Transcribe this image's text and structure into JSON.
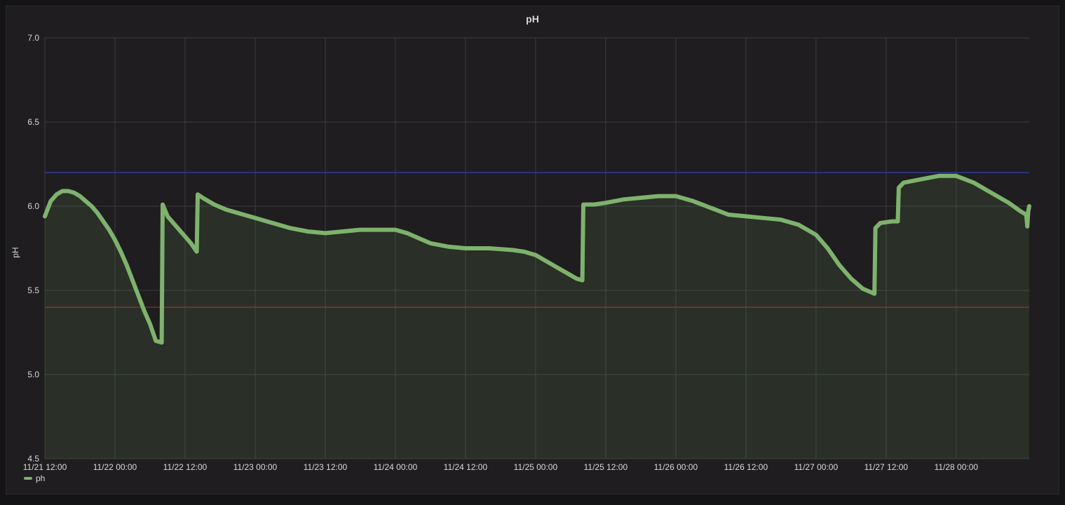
{
  "panel": {
    "title": "pH"
  },
  "chart_data": {
    "type": "line",
    "title": "pH",
    "ylabel": "pH",
    "xlabel": "",
    "ylim": [
      4.5,
      7.0
    ],
    "yticks": [
      "7.0",
      "6.5",
      "6.0",
      "5.5",
      "5.0",
      "4.5"
    ],
    "xlim": [
      "11/21 12:00",
      "11/28 12:30"
    ],
    "xticks": [
      "11/21 12:00",
      "11/22 00:00",
      "11/22 12:00",
      "11/23 00:00",
      "11/23 12:00",
      "11/24 00:00",
      "11/24 12:00",
      "11/25 00:00",
      "11/25 12:00",
      "11/26 00:00",
      "11/26 12:00",
      "11/27 00:00",
      "11/27 12:00",
      "11/28 00:00"
    ],
    "grid": true,
    "legend_position": "bottom-left",
    "thresholds": [
      {
        "value": 6.2,
        "color": "#2f3b9e"
      },
      {
        "value": 5.4,
        "color": "#7a2d2a"
      }
    ],
    "series": [
      {
        "name": "ph",
        "color": "#7eb26d",
        "fill": true,
        "points": [
          [
            "11/21 12:00",
            5.94
          ],
          [
            "11/21 13:00",
            6.03
          ],
          [
            "11/21 14:00",
            6.07
          ],
          [
            "11/21 15:00",
            6.09
          ],
          [
            "11/21 16:00",
            6.09
          ],
          [
            "11/21 17:00",
            6.08
          ],
          [
            "11/21 18:00",
            6.06
          ],
          [
            "11/21 19:00",
            6.03
          ],
          [
            "11/21 20:00",
            6.0
          ],
          [
            "11/21 21:00",
            5.96
          ],
          [
            "11/21 22:00",
            5.91
          ],
          [
            "11/21 23:00",
            5.86
          ],
          [
            "11/22 00:00",
            5.8
          ],
          [
            "11/22 01:00",
            5.73
          ],
          [
            "11/22 02:00",
            5.65
          ],
          [
            "11/22 03:00",
            5.56
          ],
          [
            "11/22 04:00",
            5.47
          ],
          [
            "11/22 05:00",
            5.38
          ],
          [
            "11/22 06:00",
            5.3
          ],
          [
            "11/22 07:00",
            5.2
          ],
          [
            "11/22 08:00",
            5.19
          ],
          [
            "11/22 08:10",
            6.01
          ],
          [
            "11/22 09:00",
            5.94
          ],
          [
            "11/22 10:00",
            5.9
          ],
          [
            "11/22 11:00",
            5.86
          ],
          [
            "11/22 12:00",
            5.82
          ],
          [
            "11/22 13:00",
            5.78
          ],
          [
            "11/22 14:00",
            5.73
          ],
          [
            "11/22 14:10",
            6.07
          ],
          [
            "11/22 15:00",
            6.05
          ],
          [
            "11/22 17:00",
            6.01
          ],
          [
            "11/22 19:00",
            5.98
          ],
          [
            "11/22 22:00",
            5.95
          ],
          [
            "11/23 00:00",
            5.93
          ],
          [
            "11/23 03:00",
            5.9
          ],
          [
            "11/23 06:00",
            5.87
          ],
          [
            "11/23 09:00",
            5.85
          ],
          [
            "11/23 12:00",
            5.84
          ],
          [
            "11/23 15:00",
            5.85
          ],
          [
            "11/23 18:00",
            5.86
          ],
          [
            "11/23 21:00",
            5.86
          ],
          [
            "11/24 00:00",
            5.86
          ],
          [
            "11/24 02:00",
            5.84
          ],
          [
            "11/24 04:00",
            5.81
          ],
          [
            "11/24 06:00",
            5.78
          ],
          [
            "11/24 09:00",
            5.76
          ],
          [
            "11/24 12:00",
            5.75
          ],
          [
            "11/24 16:00",
            5.75
          ],
          [
            "11/24 20:00",
            5.74
          ],
          [
            "11/24 22:00",
            5.73
          ],
          [
            "11/25 00:00",
            5.71
          ],
          [
            "11/25 02:00",
            5.67
          ],
          [
            "11/25 04:00",
            5.63
          ],
          [
            "11/25 06:00",
            5.59
          ],
          [
            "11/25 07:00",
            5.57
          ],
          [
            "11/25 08:00",
            5.56
          ],
          [
            "11/25 08:10",
            6.01
          ],
          [
            "11/25 10:00",
            6.01
          ],
          [
            "11/25 12:00",
            6.02
          ],
          [
            "11/25 15:00",
            6.04
          ],
          [
            "11/25 18:00",
            6.05
          ],
          [
            "11/25 21:00",
            6.06
          ],
          [
            "11/26 00:00",
            6.06
          ],
          [
            "11/26 03:00",
            6.03
          ],
          [
            "11/26 06:00",
            5.99
          ],
          [
            "11/26 09:00",
            5.95
          ],
          [
            "11/26 12:00",
            5.94
          ],
          [
            "11/26 15:00",
            5.93
          ],
          [
            "11/26 18:00",
            5.92
          ],
          [
            "11/26 21:00",
            5.89
          ],
          [
            "11/27 00:00",
            5.83
          ],
          [
            "11/27 02:00",
            5.75
          ],
          [
            "11/27 04:00",
            5.65
          ],
          [
            "11/27 06:00",
            5.57
          ],
          [
            "11/27 08:00",
            5.51
          ],
          [
            "11/27 10:00",
            5.48
          ],
          [
            "11/27 10:10",
            5.87
          ],
          [
            "11/27 11:00",
            5.9
          ],
          [
            "11/27 13:00",
            5.91
          ],
          [
            "11/27 14:00",
            5.91
          ],
          [
            "11/27 14:10",
            6.11
          ],
          [
            "11/27 15:00",
            6.14
          ],
          [
            "11/27 18:00",
            6.16
          ],
          [
            "11/27 21:00",
            6.18
          ],
          [
            "11/28 00:00",
            6.18
          ],
          [
            "11/28 03:00",
            6.14
          ],
          [
            "11/28 06:00",
            6.08
          ],
          [
            "11/28 09:00",
            6.02
          ],
          [
            "11/28 11:00",
            5.97
          ],
          [
            "11/28 12:00",
            5.95
          ],
          [
            "11/28 12:10",
            5.88
          ],
          [
            "11/28 12:20",
            5.97
          ],
          [
            "11/28 12:30",
            6.0
          ]
        ]
      }
    ]
  }
}
